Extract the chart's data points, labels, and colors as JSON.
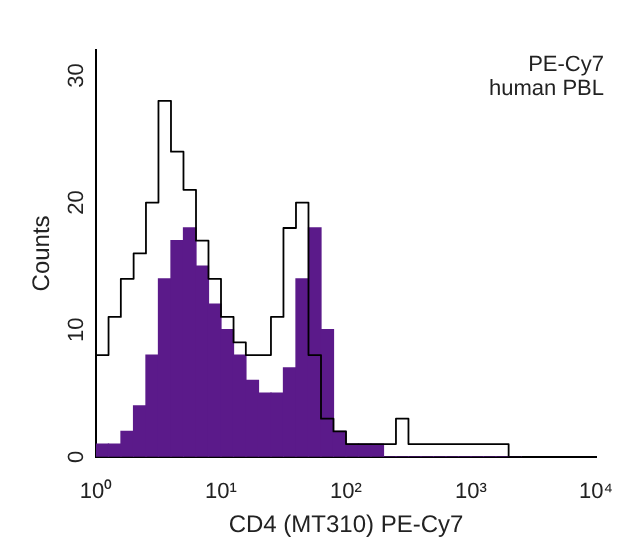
{
  "chart_data": {
    "type": "histogram",
    "xlabel": "CD4 (MT310) PE-Cy7",
    "ylabel": "Counts",
    "annotations": [
      "PE-Cy7",
      "human PBL"
    ],
    "log": "x",
    "xlim": [
      1,
      10000
    ],
    "xticks": [
      {
        "value": 1,
        "label": "10⁰"
      },
      {
        "value": 10,
        "label": "10¹"
      },
      {
        "value": 100,
        "label": "10²"
      },
      {
        "value": 1000,
        "label": "10³"
      },
      {
        "value": 10000,
        "label": "10⁴"
      }
    ],
    "ylim": [
      0,
      32
    ],
    "yticks": [
      0,
      10,
      20,
      30
    ],
    "grid": false,
    "legend": false,
    "bins": [
      1,
      1.26,
      1.58,
      2,
      2.51,
      3.16,
      3.98,
      5.01,
      6.31,
      7.94,
      10,
      12.6,
      15.8,
      20,
      25.1,
      31.6,
      39.8,
      50.1,
      63.1,
      79.4,
      100,
      126,
      158,
      200,
      251,
      316,
      398,
      501,
      631,
      794,
      1000,
      1260,
      1580,
      2000,
      2510
    ],
    "series": [
      {
        "color": "#5b1a8a",
        "values": [
          1,
          1,
          2,
          4,
          8,
          14,
          17,
          18,
          15,
          12,
          10,
          8,
          6,
          5,
          5,
          7,
          14,
          18,
          10,
          2,
          1,
          1,
          1,
          0,
          0,
          0,
          0,
          0,
          0,
          0,
          0,
          0,
          0,
          0
        ]
      },
      {
        "type": "step",
        "color": "#000000",
        "x": [
          1,
          1.26,
          1.58,
          2,
          2.51,
          3.16,
          3.98,
          5.01,
          6.31,
          7.94,
          10,
          12.6,
          15.8,
          20,
          25.1,
          31.6,
          39.8,
          50.1,
          63.1,
          79.4,
          100,
          126,
          158,
          200,
          251,
          316,
          398,
          501,
          631,
          794,
          1000,
          1260,
          1580,
          2000,
          2510
        ],
        "values": [
          20,
          8,
          11,
          14,
          16,
          20,
          28,
          24,
          21,
          17,
          14,
          11,
          9,
          8,
          8,
          11,
          18,
          20,
          8,
          3,
          2,
          1,
          1,
          1,
          1,
          3,
          1,
          1,
          1,
          1,
          1,
          1,
          1,
          1,
          0
        ]
      }
    ]
  }
}
